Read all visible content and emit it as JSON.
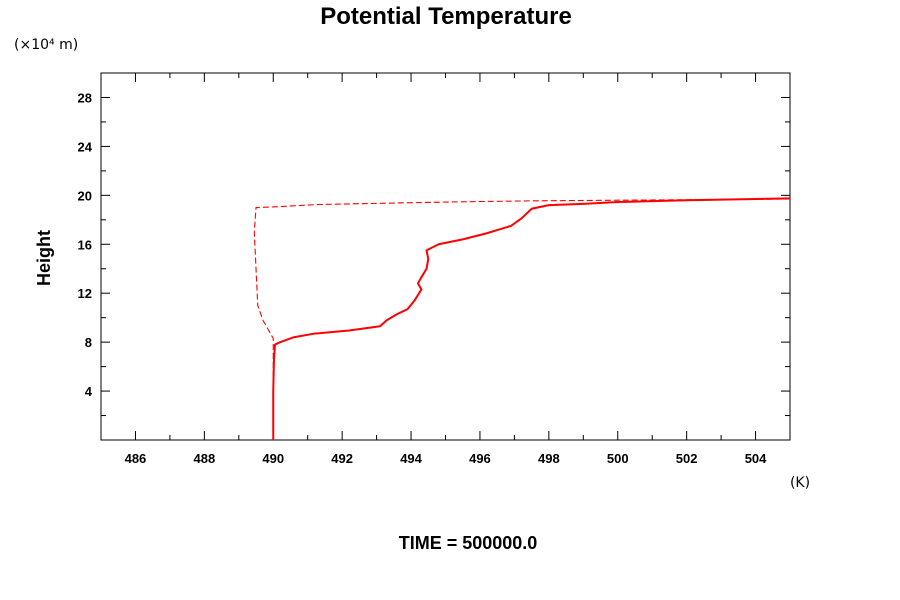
{
  "chart_data": {
    "type": "line",
    "title": "Potential Temperature",
    "ylabel": "Height",
    "y_unit": "(×10⁴ m)",
    "x_unit": "(K)",
    "footer": "TIME = 500000.0",
    "xlim": [
      485,
      505
    ],
    "ylim": [
      0,
      30
    ],
    "x_ticks": [
      486,
      488,
      490,
      492,
      494,
      496,
      498,
      500,
      502,
      504
    ],
    "y_ticks": [
      4,
      8,
      12,
      16,
      20,
      24,
      28
    ],
    "x_tick_labels": [
      "486",
      "488",
      "490",
      "492",
      "494",
      "496",
      "498",
      "500",
      "502",
      "504"
    ],
    "y_tick_labels": [
      "4",
      "8",
      "12",
      "16",
      "20",
      "24",
      "28"
    ],
    "grid": false,
    "series": [
      {
        "style": "solid",
        "color": "#ff0000",
        "points": [
          [
            490.0,
            0.0
          ],
          [
            490.0,
            4.0
          ],
          [
            490.02,
            6.5
          ],
          [
            490.05,
            7.8
          ],
          [
            490.2,
            8.0
          ],
          [
            490.6,
            8.4
          ],
          [
            491.2,
            8.7
          ],
          [
            492.2,
            8.95
          ],
          [
            493.1,
            9.3
          ],
          [
            493.3,
            9.8
          ],
          [
            493.6,
            10.3
          ],
          [
            493.9,
            10.7
          ],
          [
            494.1,
            11.4
          ],
          [
            494.3,
            12.3
          ],
          [
            494.2,
            12.8
          ],
          [
            494.3,
            13.3
          ],
          [
            494.45,
            14.0
          ],
          [
            494.5,
            14.8
          ],
          [
            494.45,
            15.5
          ],
          [
            494.8,
            16.0
          ],
          [
            495.5,
            16.4
          ],
          [
            496.2,
            16.9
          ],
          [
            496.9,
            17.5
          ],
          [
            497.2,
            18.1
          ],
          [
            497.5,
            18.9
          ],
          [
            498.0,
            19.2
          ],
          [
            499.0,
            19.3
          ],
          [
            500.0,
            19.45
          ],
          [
            502.0,
            19.6
          ],
          [
            505.0,
            19.75
          ]
        ]
      },
      {
        "style": "dashed",
        "color": "#ff0000",
        "points": [
          [
            490.0,
            0.0
          ],
          [
            490.0,
            8.3
          ],
          [
            489.7,
            9.8
          ],
          [
            489.55,
            11.0
          ],
          [
            489.5,
            14.0
          ],
          [
            489.45,
            17.0
          ],
          [
            489.5,
            19.0
          ],
          [
            490.0,
            19.05
          ],
          [
            491.3,
            19.25
          ],
          [
            495.0,
            19.45
          ],
          [
            497.5,
            19.55
          ],
          [
            500.0,
            19.6
          ],
          [
            505.0,
            19.7
          ]
        ]
      }
    ]
  }
}
